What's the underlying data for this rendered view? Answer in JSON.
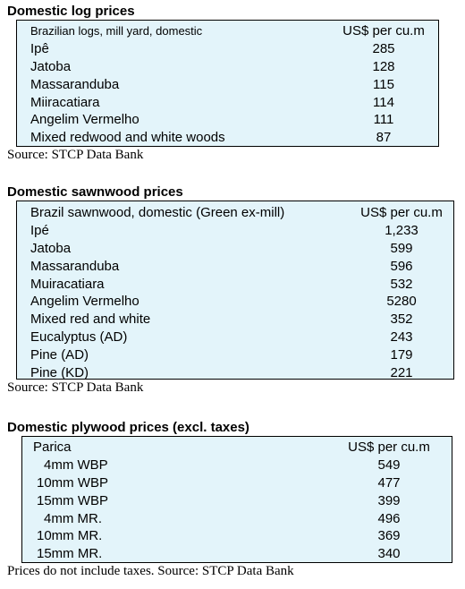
{
  "log_prices": {
    "heading": "Domestic log prices",
    "header": {
      "label": "Brazilian logs, mill yard, domestic",
      "unit": "US$ per cu.m"
    },
    "rows": [
      {
        "name": "Ipê",
        "value": "285"
      },
      {
        "name": "Jatoba",
        "value": "128"
      },
      {
        "name": "Massaranduba",
        "value": "115"
      },
      {
        "name": "Miiracatiara",
        "value": "114"
      },
      {
        "name": "Angelim Vermelho",
        "value": "111"
      },
      {
        "name": "Mixed redwood and white woods",
        "value": "87"
      }
    ],
    "source": "Source: STCP Data Bank"
  },
  "sawnwood_prices": {
    "heading": "Domestic sawnwood prices",
    "header": {
      "label": "Brazil sawnwood, domestic (Green ex-mill)",
      "unit": "US$ per cu.m"
    },
    "rows": [
      {
        "name": "Ipé",
        "value": "1,233"
      },
      {
        "name": "Jatoba",
        "value": "599"
      },
      {
        "name": "Massaranduba",
        "value": "596"
      },
      {
        "name": "Muiracatiara",
        "value": "532"
      },
      {
        "name": "Angelim Vermelho",
        "value": "5280"
      },
      {
        "name": "Mixed red and white",
        "value": "352"
      },
      {
        "name": "Eucalyptus (AD)",
        "value": "243"
      },
      {
        "name": "Pine (AD)",
        "value": "179"
      },
      {
        "name": "Pine (KD)",
        "value": "221"
      }
    ],
    "source": "Source: STCP Data Bank"
  },
  "plywood_prices": {
    "heading": "Domestic plywood prices (excl. taxes)",
    "header": {
      "label": "Parica",
      "unit": "US$ per cu.m"
    },
    "rows": [
      {
        "name": "4mm WBP",
        "value": "549"
      },
      {
        "name": "10mm WBP",
        "value": "477"
      },
      {
        "name": "15mm WBP",
        "value": "399"
      },
      {
        "name": "4mm MR.",
        "value": "496"
      },
      {
        "name": "10mm MR.",
        "value": "369"
      },
      {
        "name": "15mm MR.",
        "value": "340"
      }
    ],
    "source": "Prices do not include taxes. Source: STCP Data Bank"
  }
}
